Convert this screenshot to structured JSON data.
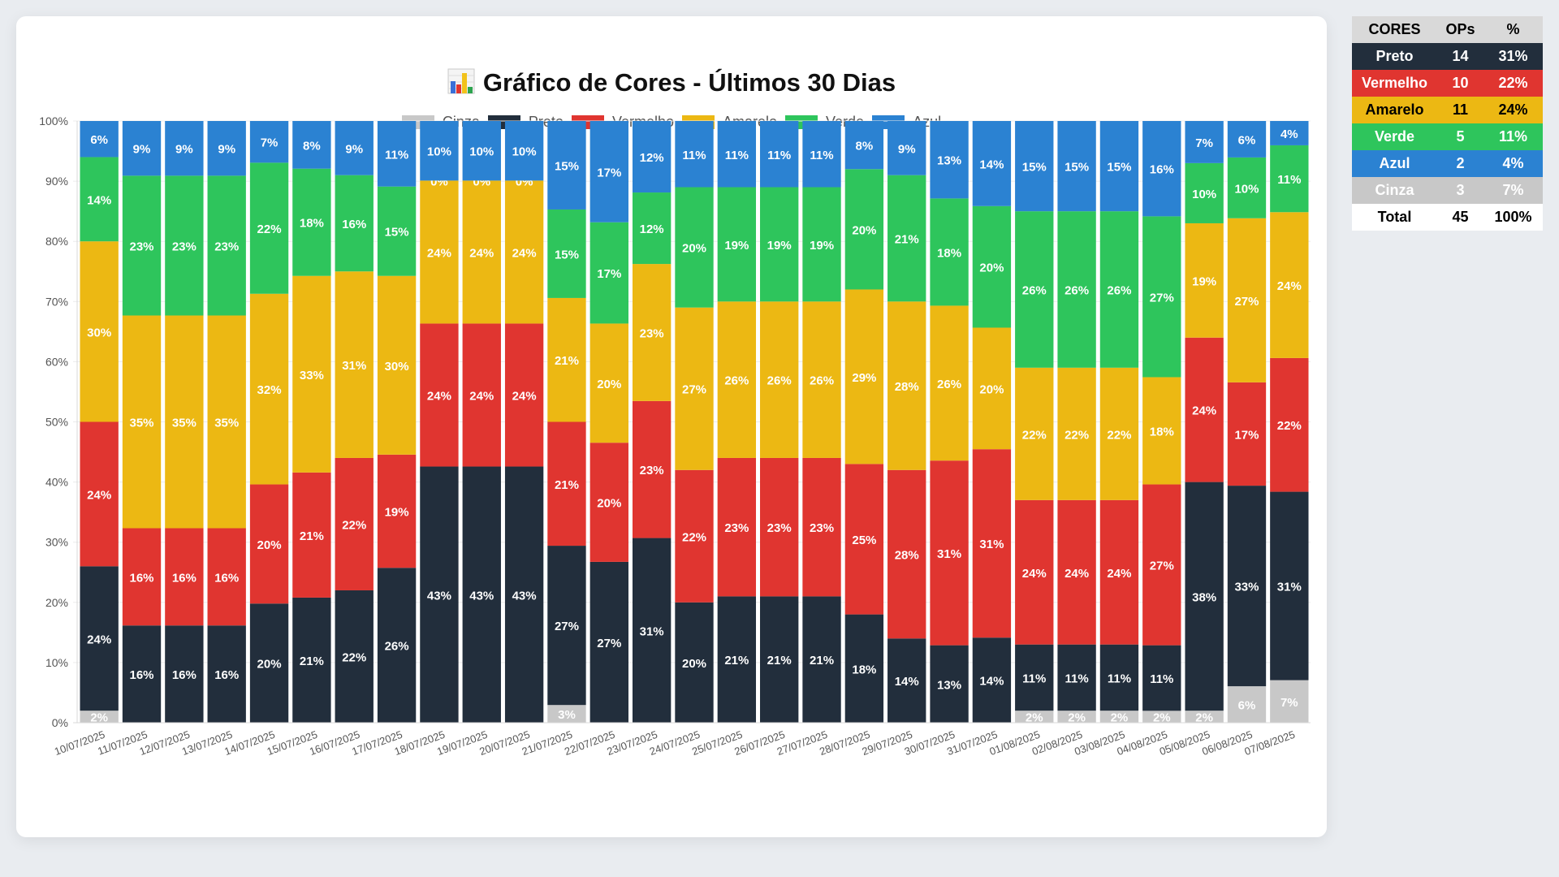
{
  "title": "Gráfico de Cores - Últimos 30 Dias",
  "title_icon": "bar-chart-icon",
  "legend": [
    {
      "key": "cinza",
      "label": "Cinza",
      "color": "#c8c8c8"
    },
    {
      "key": "preto",
      "label": "Preto",
      "color": "#222e3c"
    },
    {
      "key": "vermelho",
      "label": "Vermelho",
      "color": "#e03530"
    },
    {
      "key": "amarelo",
      "label": "Amarelo",
      "color": "#ecb813"
    },
    {
      "key": "verde",
      "label": "Verde",
      "color": "#2ec55c"
    },
    {
      "key": "azul",
      "label": "Azul",
      "color": "#2b82d2"
    }
  ],
  "chart_data": {
    "type": "bar",
    "stacked": true,
    "normalized": true,
    "title": "Gráfico de Cores - Últimos 30 Dias",
    "xlabel": "",
    "ylabel": "",
    "ylim": [
      0,
      100
    ],
    "yticks": [
      "0%",
      "10%",
      "20%",
      "30%",
      "40%",
      "50%",
      "60%",
      "70%",
      "80%",
      "90%",
      "100%"
    ],
    "grid": true,
    "legend_position": "top",
    "categories": [
      "10/07/2025",
      "11/07/2025",
      "12/07/2025",
      "13/07/2025",
      "14/07/2025",
      "15/07/2025",
      "16/07/2025",
      "17/07/2025",
      "18/07/2025",
      "19/07/2025",
      "20/07/2025",
      "21/07/2025",
      "22/07/2025",
      "23/07/2025",
      "24/07/2025",
      "25/07/2025",
      "26/07/2025",
      "27/07/2025",
      "28/07/2025",
      "29/07/2025",
      "30/07/2025",
      "31/07/2025",
      "01/08/2025",
      "02/08/2025",
      "03/08/2025",
      "04/08/2025",
      "05/08/2025",
      "06/08/2025",
      "07/08/2025"
    ],
    "series": [
      {
        "name": "Cinza",
        "values": [
          2,
          0,
          0,
          0,
          0,
          0,
          0,
          0,
          0,
          0,
          0,
          3,
          0,
          0,
          0,
          0,
          0,
          0,
          0,
          0,
          0,
          0,
          2,
          2,
          2,
          2,
          2,
          6,
          7
        ]
      },
      {
        "name": "Preto",
        "values": [
          24,
          16,
          16,
          16,
          20,
          21,
          22,
          26,
          43,
          43,
          43,
          27,
          27,
          31,
          20,
          21,
          21,
          21,
          18,
          14,
          13,
          14,
          11,
          11,
          11,
          11,
          38,
          33,
          31
        ]
      },
      {
        "name": "Vermelho",
        "values": [
          24,
          16,
          16,
          16,
          20,
          21,
          22,
          19,
          24,
          24,
          24,
          21,
          20,
          23,
          22,
          23,
          23,
          23,
          25,
          28,
          31,
          31,
          24,
          24,
          24,
          27,
          24,
          17,
          22
        ]
      },
      {
        "name": "Amarelo",
        "values": [
          30,
          35,
          35,
          35,
          32,
          33,
          31,
          30,
          24,
          24,
          24,
          21,
          20,
          23,
          27,
          26,
          26,
          26,
          29,
          28,
          26,
          20,
          22,
          22,
          22,
          18,
          19,
          27,
          24
        ]
      },
      {
        "name": "Verde",
        "values": [
          14,
          23,
          23,
          23,
          22,
          18,
          16,
          15,
          0,
          0,
          0,
          15,
          17,
          12,
          20,
          19,
          19,
          19,
          20,
          21,
          18,
          20,
          26,
          26,
          26,
          27,
          10,
          10,
          11
        ]
      },
      {
        "name": "Azul",
        "values": [
          6,
          9,
          9,
          9,
          7,
          8,
          9,
          11,
          10,
          10,
          10,
          15,
          17,
          12,
          11,
          11,
          11,
          11,
          8,
          9,
          13,
          14,
          15,
          15,
          15,
          16,
          7,
          6,
          4
        ]
      }
    ]
  },
  "summary_table": {
    "headers": [
      "CORES",
      "OPs",
      "%"
    ],
    "rows": [
      {
        "name": "Preto",
        "ops": "14",
        "pct": "31%",
        "bg": "#222e3c",
        "fg": "#ffffff"
      },
      {
        "name": "Vermelho",
        "ops": "10",
        "pct": "22%",
        "bg": "#e03530",
        "fg": "#ffffff"
      },
      {
        "name": "Amarelo",
        "ops": "11",
        "pct": "24%",
        "bg": "#ecb813",
        "fg": "#000000"
      },
      {
        "name": "Verde",
        "ops": "5",
        "pct": "11%",
        "bg": "#2ec55c",
        "fg": "#ffffff"
      },
      {
        "name": "Azul",
        "ops": "2",
        "pct": "4%",
        "bg": "#2b82d2",
        "fg": "#ffffff"
      },
      {
        "name": "Cinza",
        "ops": "3",
        "pct": "7%",
        "bg": "#c8c8c8",
        "fg": "#ffffff"
      },
      {
        "name": "Total",
        "ops": "45",
        "pct": "100%",
        "bg": "#ffffff",
        "fg": "#000000"
      }
    ]
  }
}
